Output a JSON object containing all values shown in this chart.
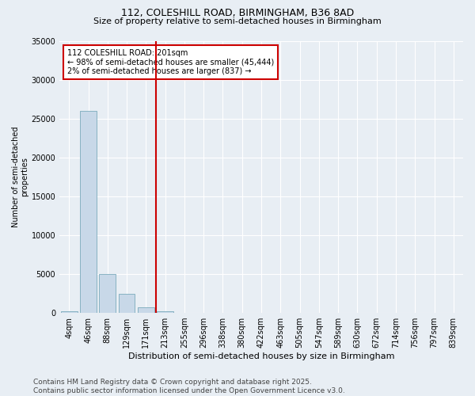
{
  "title_line1": "112, COLESHILL ROAD, BIRMINGHAM, B36 8AD",
  "title_line2": "Size of property relative to semi-detached houses in Birmingham",
  "xlabel": "Distribution of semi-detached houses by size in Birmingham",
  "ylabel": "Number of semi-detached\nproperties",
  "bar_color": "#c8d8e8",
  "bar_edge_color": "#7aaabb",
  "categories": [
    "4sqm",
    "46sqm",
    "88sqm",
    "129sqm",
    "171sqm",
    "213sqm",
    "255sqm",
    "296sqm",
    "338sqm",
    "380sqm",
    "422sqm",
    "463sqm",
    "505sqm",
    "547sqm",
    "589sqm",
    "630sqm",
    "672sqm",
    "714sqm",
    "756sqm",
    "797sqm",
    "839sqm"
  ],
  "values": [
    200,
    26000,
    5000,
    2500,
    700,
    200,
    50,
    20,
    10,
    5,
    3,
    2,
    1,
    1,
    0,
    0,
    0,
    0,
    0,
    0,
    0
  ],
  "ylim": [
    0,
    35000
  ],
  "yticks": [
    0,
    5000,
    10000,
    15000,
    20000,
    25000,
    30000,
    35000
  ],
  "vline_x": 4.5,
  "vline_color": "#cc0000",
  "property_label": "112 COLESHILL ROAD: 201sqm",
  "annotation_line1": "← 98% of semi-detached houses are smaller (45,444)",
  "annotation_line2": "2% of semi-detached houses are larger (837) →",
  "annotation_box_color": "#ffffff",
  "annotation_box_edge": "#cc0000",
  "background_color": "#e8eef4",
  "grid_color": "#ffffff",
  "title_fontsize": 9,
  "subtitle_fontsize": 8,
  "xlabel_fontsize": 8,
  "ylabel_fontsize": 7,
  "tick_fontsize": 7,
  "annot_fontsize": 7,
  "footer_line1": "Contains HM Land Registry data © Crown copyright and database right 2025.",
  "footer_line2": "Contains public sector information licensed under the Open Government Licence v3.0.",
  "footer_fontsize": 6.5
}
